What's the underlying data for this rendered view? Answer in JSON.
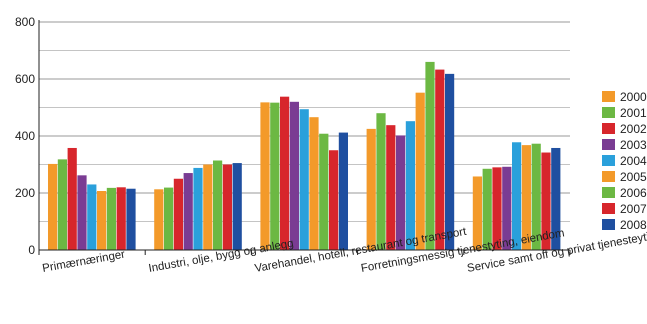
{
  "chart_data": {
    "type": "bar",
    "title": "",
    "xlabel": "",
    "ylabel": "",
    "ylim": [
      0,
      800
    ],
    "yticks": [
      0,
      200,
      400,
      600,
      800
    ],
    "grid": true,
    "legend_position": "right",
    "categories": [
      "Primærnæringer",
      "Industri, olje, bygg og anlegg",
      "Varehandel, hotell, restaurant og transport",
      "Forretningsmessig tjenestyting, eiendom",
      "Service samt off og privat tjenesteyting"
    ],
    "series": [
      {
        "name": "2000",
        "color": "#f39a2a",
        "values": [
          302,
          213,
          518,
          425,
          258
        ]
      },
      {
        "name": "2001",
        "color": "#6cb843",
        "values": [
          318,
          219,
          517,
          480,
          285
        ]
      },
      {
        "name": "2002",
        "color": "#d7262c",
        "values": [
          358,
          250,
          538,
          438,
          290
        ]
      },
      {
        "name": "2003",
        "color": "#7a3c93",
        "values": [
          262,
          270,
          520,
          402,
          292
        ]
      },
      {
        "name": "2004",
        "color": "#2aa0db",
        "values": [
          230,
          288,
          494,
          452,
          378
        ]
      },
      {
        "name": "2005",
        "color": "#f39a2a",
        "values": [
          207,
          300,
          466,
          552,
          368
        ]
      },
      {
        "name": "2006",
        "color": "#6cb843",
        "values": [
          218,
          314,
          408,
          660,
          373
        ]
      },
      {
        "name": "2007",
        "color": "#d7262c",
        "values": [
          220,
          300,
          350,
          633,
          342
        ]
      },
      {
        "name": "2008",
        "color": "#1f4fa0",
        "values": [
          215,
          305,
          412,
          618,
          358
        ]
      }
    ]
  }
}
